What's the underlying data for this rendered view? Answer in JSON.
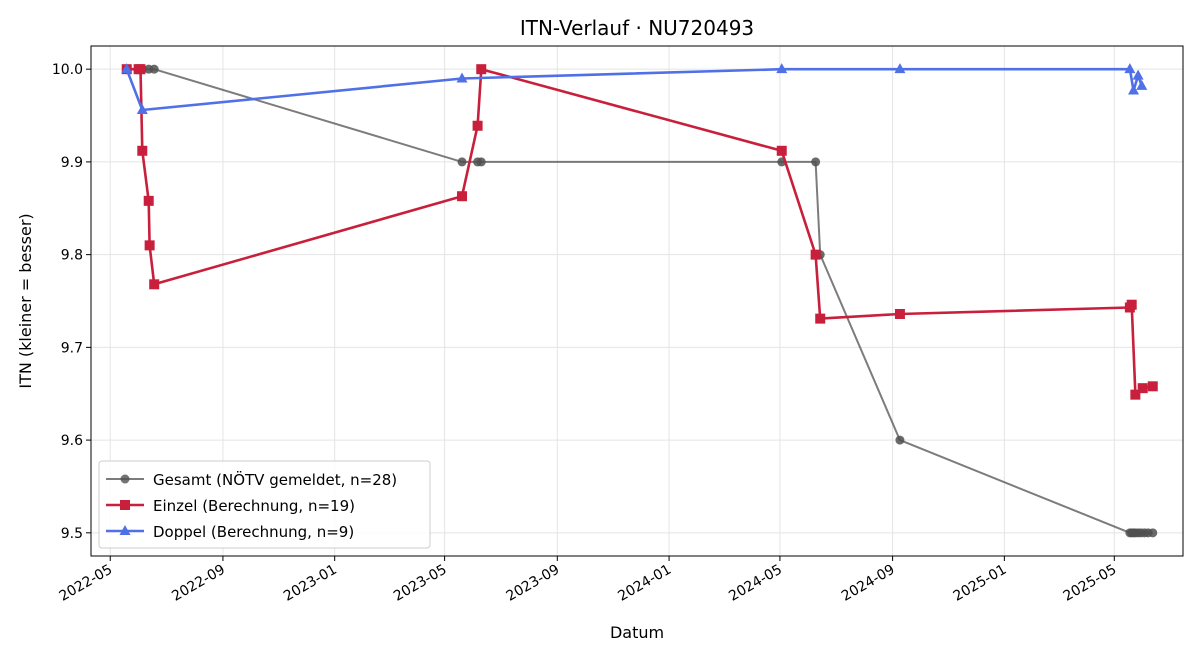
{
  "chart_data": {
    "type": "line",
    "title": "ITN-Verlauf · NU720493",
    "xlabel": "Datum",
    "ylabel": "ITN  (kleiner = besser)",
    "x_type": "date",
    "xlim": [
      "2022-04-10",
      "2025-07-15"
    ],
    "ylim": [
      9.475,
      10.025
    ],
    "y_ticks": [
      9.5,
      9.6,
      9.7,
      9.8,
      9.9,
      10.0
    ],
    "y_tick_labels": [
      "9.5",
      "9.6",
      "9.7",
      "9.8",
      "9.9",
      "10.0"
    ],
    "x_ticks": [
      "2022-05-01",
      "2022-09-01",
      "2023-01-01",
      "2023-05-01",
      "2023-09-01",
      "2024-01-01",
      "2024-05-01",
      "2024-09-01",
      "2025-01-01",
      "2025-05-01"
    ],
    "x_tick_labels": [
      "2022-05",
      "2022-09",
      "2023-01",
      "2023-05",
      "2023-09",
      "2024-01",
      "2024-05",
      "2024-09",
      "2025-01",
      "2025-05"
    ],
    "grid": true,
    "legend_position": "lower-left",
    "series": [
      {
        "name": "Gesamt (NÖTV gemeldet, n=28)",
        "color": "#505050",
        "marker": "circle",
        "x": [
          "2022-05-19",
          "2022-06-01",
          "2022-06-03",
          "2022-06-04",
          "2022-06-05",
          "2022-06-12",
          "2022-06-18",
          "2023-05-20",
          "2023-06-06",
          "2023-06-10",
          "2024-05-03",
          "2024-06-09",
          "2024-06-14",
          "2024-09-09",
          "2025-05-18",
          "2025-05-20",
          "2025-05-22",
          "2025-05-24",
          "2025-05-27",
          "2025-05-30",
          "2025-06-03",
          "2025-06-07",
          "2025-06-12"
        ],
        "y": [
          10.0,
          10.0,
          10.0,
          10.0,
          10.0,
          10.0,
          10.0,
          9.9,
          9.9,
          9.9,
          9.9,
          9.9,
          9.8,
          9.6,
          9.5,
          9.5,
          9.5,
          9.5,
          9.5,
          9.5,
          9.5,
          9.5,
          9.5
        ]
      },
      {
        "name": "Einzel (Berechnung, n=19)",
        "color": "#c8203c",
        "marker": "square",
        "x": [
          "2022-05-19",
          "2022-06-01",
          "2022-06-03",
          "2022-06-05",
          "2022-06-12",
          "2022-06-13",
          "2022-06-18",
          "2023-05-20",
          "2023-06-06",
          "2023-06-10",
          "2024-05-03",
          "2024-06-09",
          "2024-06-14",
          "2024-09-09",
          "2025-05-18",
          "2025-05-20",
          "2025-05-24",
          "2025-06-01",
          "2025-06-12"
        ],
        "y": [
          10.0,
          10.0,
          10.0,
          9.912,
          9.858,
          9.81,
          9.768,
          9.863,
          9.939,
          10.0,
          9.912,
          9.8,
          9.731,
          9.736,
          9.743,
          9.746,
          9.649,
          9.656,
          9.658
        ]
      },
      {
        "name": "Doppel (Berechnung, n=9)",
        "color": "#5070e8",
        "marker": "triangle",
        "x": [
          "2022-05-19",
          "2022-06-05",
          "2023-05-20",
          "2024-05-03",
          "2024-09-09",
          "2025-05-18",
          "2025-05-22",
          "2025-05-27",
          "2025-05-31"
        ],
        "y": [
          10.0,
          9.956,
          9.99,
          10.0,
          10.0,
          10.0,
          9.977,
          9.993,
          9.982
        ]
      }
    ]
  }
}
